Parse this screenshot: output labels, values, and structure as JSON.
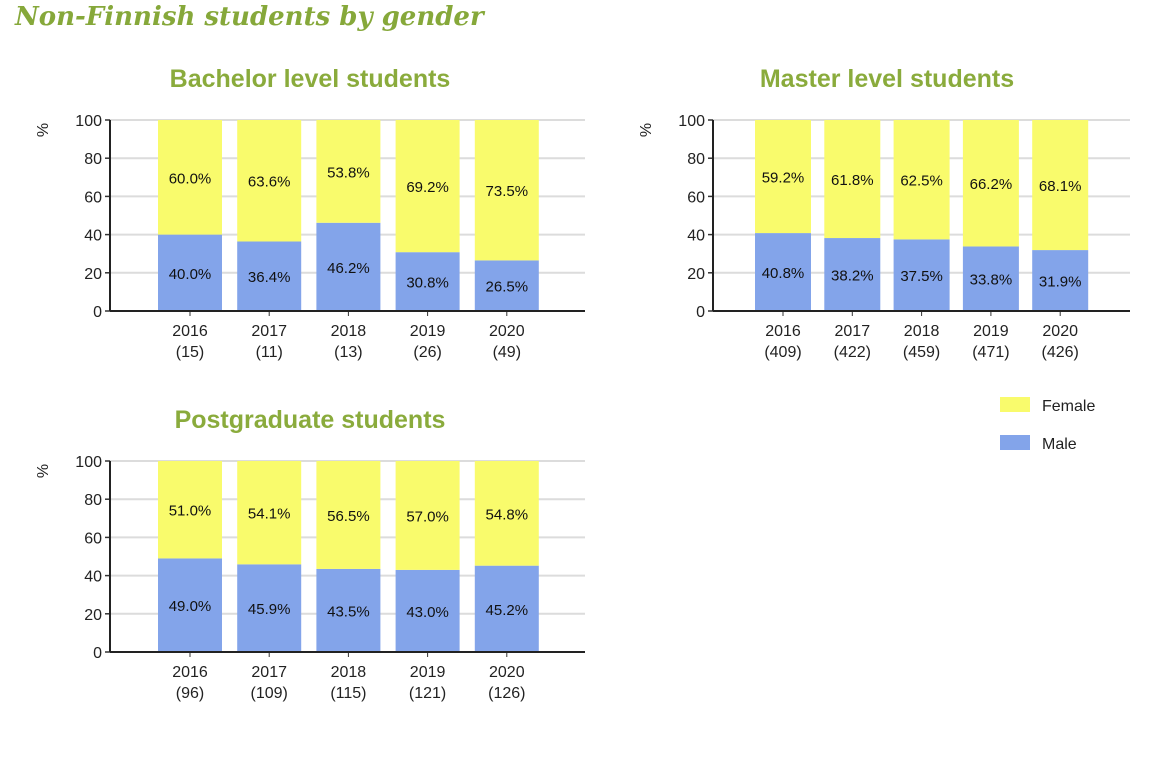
{
  "page_title": "Non-Finnish students by gender",
  "colors": {
    "female": "#f9fb6c",
    "male": "#83a4ea",
    "title": "#8aab3c"
  },
  "legend": [
    {
      "label": "Female",
      "color": "#f9fb6c"
    },
    {
      "label": "Male",
      "color": "#83a4ea"
    }
  ],
  "chart_data": [
    {
      "type": "bar",
      "stacked": true,
      "title": "Bachelor level students",
      "ylabel": "%",
      "ylim": [
        0,
        100
      ],
      "yticks": [
        "0",
        "20",
        "40",
        "60",
        "80",
        "100"
      ],
      "grid": true,
      "categories": [
        "2016",
        "2017",
        "2018",
        "2019",
        "2020"
      ],
      "counts": [
        "(15)",
        "(11)",
        "(13)",
        "(26)",
        "(49)"
      ],
      "series": [
        {
          "name": "Male",
          "values": [
            40.0,
            36.4,
            46.2,
            30.8,
            26.5
          ],
          "labels": [
            "40.0%",
            "36.4%",
            "46.2%",
            "30.8%",
            "26.5%"
          ]
        },
        {
          "name": "Female",
          "values": [
            60.0,
            63.6,
            53.8,
            69.2,
            73.5
          ],
          "labels": [
            "60.0%",
            "63.6%",
            "53.8%",
            "69.2%",
            "73.5%"
          ]
        }
      ]
    },
    {
      "type": "bar",
      "stacked": true,
      "title": "Master level students",
      "ylabel": "%",
      "ylim": [
        0,
        100
      ],
      "yticks": [
        "0",
        "20",
        "40",
        "60",
        "80",
        "100"
      ],
      "grid": true,
      "categories": [
        "2016",
        "2017",
        "2018",
        "2019",
        "2020"
      ],
      "counts": [
        "(409)",
        "(422)",
        "(459)",
        "(471)",
        "(426)"
      ],
      "series": [
        {
          "name": "Male",
          "values": [
            40.8,
            38.2,
            37.5,
            33.8,
            31.9
          ],
          "labels": [
            "40.8%",
            "38.2%",
            "37.5%",
            "33.8%",
            "31.9%"
          ]
        },
        {
          "name": "Female",
          "values": [
            59.2,
            61.8,
            62.5,
            66.2,
            68.1
          ],
          "labels": [
            "59.2%",
            "61.8%",
            "62.5%",
            "66.2%",
            "68.1%"
          ]
        }
      ]
    },
    {
      "type": "bar",
      "stacked": true,
      "title": "Postgraduate students",
      "ylabel": "%",
      "ylim": [
        0,
        100
      ],
      "yticks": [
        "0",
        "20",
        "40",
        "60",
        "80",
        "100"
      ],
      "grid": true,
      "categories": [
        "2016",
        "2017",
        "2018",
        "2019",
        "2020"
      ],
      "counts": [
        "(96)",
        "(109)",
        "(115)",
        "(121)",
        "(126)"
      ],
      "series": [
        {
          "name": "Male",
          "values": [
            49.0,
            45.9,
            43.5,
            43.0,
            45.2
          ],
          "labels": [
            "49.0%",
            "45.9%",
            "43.5%",
            "43.0%",
            "45.2%"
          ]
        },
        {
          "name": "Female",
          "values": [
            51.0,
            54.1,
            56.5,
            57.0,
            54.8
          ],
          "labels": [
            "51.0%",
            "54.1%",
            "56.5%",
            "57.0%",
            "54.8%"
          ]
        }
      ]
    }
  ]
}
